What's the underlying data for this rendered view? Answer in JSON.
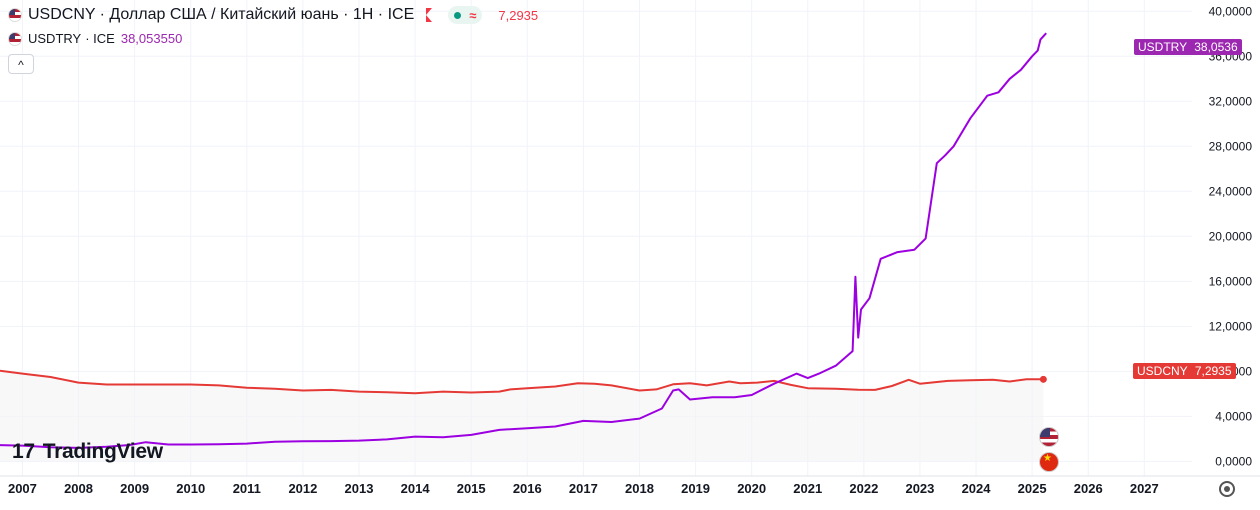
{
  "legend": {
    "series1": {
      "symbol": "USDCNY",
      "name": "· Доллар США / Китайский юань · 1H · ICE",
      "price": "7,2935"
    },
    "series2": {
      "symbol": "USDTRY",
      "name": "· ICE",
      "price": "38,053550"
    },
    "collapse_glyph": "^"
  },
  "branding": {
    "logo_mark": "17",
    "logo_text": "TradingView"
  },
  "price_tags": {
    "usdtry": {
      "label": "USDTRY",
      "value": "38,0536",
      "color": "#9c27b0"
    },
    "usdcny": {
      "label": "USDCNY",
      "value": "7,2935",
      "color": "#e53935"
    }
  },
  "icons": [
    "flag-icon",
    "red-flag-icon",
    "status-dot-icon",
    "approx-icon",
    "chevron-up-icon",
    "settings-gear-icon",
    "us-flag-icon",
    "china-flag-icon"
  ],
  "chart_data": {
    "type": "line",
    "title": "",
    "xlabel": "",
    "ylabel": "",
    "ylim": [
      -1.3,
      41.0
    ],
    "xlim": [
      2006.6,
      2027.85
    ],
    "grid": true,
    "y_ticks": [
      0,
      4,
      8,
      12,
      16,
      20,
      24,
      28,
      32,
      36,
      40
    ],
    "y_tick_labels": [
      "0,0000",
      "4,0000",
      "8,0000",
      "12,0000",
      "16,0000",
      "20,0000",
      "24,0000",
      "28,0000",
      "32,0000",
      "36,0000",
      "40,0000"
    ],
    "x_ticks": [
      2007,
      2008,
      2009,
      2010,
      2011,
      2012,
      2013,
      2014,
      2015,
      2016,
      2017,
      2018,
      2019,
      2020,
      2021,
      2022,
      2023,
      2024,
      2025,
      2026,
      2027
    ],
    "x_tick_labels": [
      "2007",
      "2008",
      "2009",
      "2010",
      "2011",
      "2012",
      "2013",
      "2014",
      "2015",
      "2016",
      "2017",
      "2018",
      "2019",
      "2020",
      "2021",
      "2022",
      "2023",
      "2024",
      "2025",
      "2026",
      "2027"
    ],
    "series": [
      {
        "name": "USDCNY",
        "color": "#e53935",
        "x": [
          2006.6,
          2007.0,
          2007.5,
          2008.0,
          2008.5,
          2009.0,
          2010.0,
          2010.5,
          2011.0,
          2011.5,
          2012.0,
          2012.5,
          2013.0,
          2013.5,
          2014.0,
          2014.5,
          2015.0,
          2015.5,
          2015.7,
          2016.0,
          2016.5,
          2016.9,
          2017.2,
          2017.5,
          2018.0,
          2018.3,
          2018.6,
          2018.9,
          2019.2,
          2019.6,
          2019.8,
          2020.1,
          2020.4,
          2020.7,
          2021.0,
          2021.5,
          2021.9,
          2022.2,
          2022.5,
          2022.8,
          2023.0,
          2023.5,
          2023.9,
          2024.3,
          2024.6,
          2024.9,
          2025.2
        ],
        "y": [
          8.05,
          7.8,
          7.5,
          7.0,
          6.83,
          6.83,
          6.83,
          6.75,
          6.55,
          6.45,
          6.3,
          6.35,
          6.2,
          6.14,
          6.05,
          6.2,
          6.12,
          6.2,
          6.4,
          6.5,
          6.65,
          6.95,
          6.9,
          6.75,
          6.3,
          6.4,
          6.85,
          6.95,
          6.75,
          7.1,
          6.95,
          7.0,
          7.15,
          6.8,
          6.5,
          6.45,
          6.36,
          6.35,
          6.7,
          7.25,
          6.9,
          7.15,
          7.2,
          7.25,
          7.1,
          7.3,
          7.29
        ]
      },
      {
        "name": "USDTRY",
        "color": "#9c00e0",
        "x": [
          2006.6,
          2007.0,
          2007.5,
          2008.0,
          2008.5,
          2008.9,
          2009.2,
          2009.6,
          2010.0,
          2010.5,
          2011.0,
          2011.5,
          2012.0,
          2012.5,
          2013.0,
          2013.5,
          2014.0,
          2014.5,
          2015.0,
          2015.5,
          2016.0,
          2016.5,
          2017.0,
          2017.5,
          2018.0,
          2018.4,
          2018.6,
          2018.7,
          2018.9,
          2019.3,
          2019.7,
          2020.0,
          2020.4,
          2020.8,
          2021.0,
          2021.2,
          2021.5,
          2021.8,
          2021.85,
          2021.9,
          2021.95,
          2022.1,
          2022.3,
          2022.6,
          2022.9,
          2023.1,
          2023.3,
          2023.45,
          2023.6,
          2023.9,
          2024.2,
          2024.4,
          2024.6,
          2024.8,
          2025.0,
          2025.1,
          2025.15,
          2025.25
        ],
        "y": [
          1.45,
          1.4,
          1.25,
          1.2,
          1.3,
          1.45,
          1.7,
          1.5,
          1.5,
          1.52,
          1.58,
          1.75,
          1.78,
          1.8,
          1.85,
          1.95,
          2.2,
          2.15,
          2.35,
          2.8,
          2.95,
          3.1,
          3.6,
          3.5,
          3.8,
          4.7,
          6.3,
          6.4,
          5.5,
          5.7,
          5.7,
          5.9,
          6.9,
          7.8,
          7.4,
          7.8,
          8.5,
          9.8,
          16.4,
          11.0,
          13.5,
          14.5,
          18.0,
          18.6,
          18.8,
          19.8,
          26.5,
          27.2,
          28.0,
          30.5,
          32.5,
          32.8,
          34.0,
          34.8,
          36.0,
          36.5,
          37.5,
          38.05
        ]
      }
    ]
  }
}
